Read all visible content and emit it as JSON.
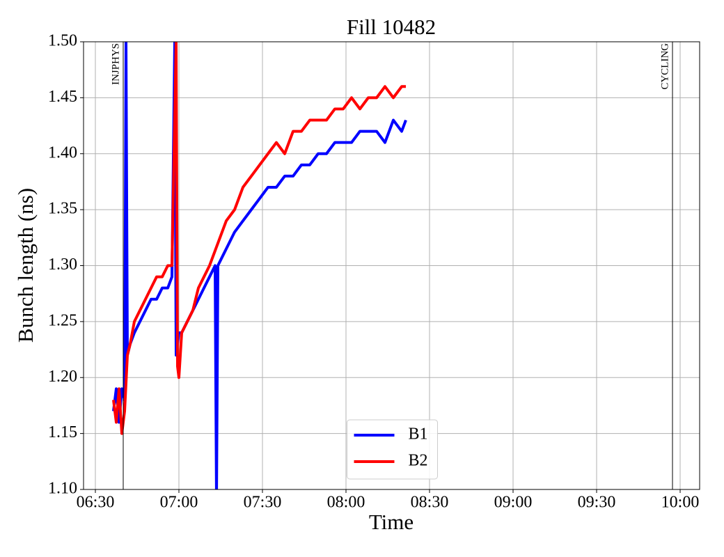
{
  "chart_data": {
    "type": "line",
    "title": "Fill 10482",
    "x_label": "Time",
    "y_label": "Bunch length (ns)",
    "xlim": [
      385.75,
      607
    ],
    "xticks": [
      {
        "value": 390,
        "label": "06:30"
      },
      {
        "value": 420,
        "label": "07:00"
      },
      {
        "value": 450,
        "label": "07:30"
      },
      {
        "value": 480,
        "label": "08:00"
      },
      {
        "value": 510,
        "label": "08:30"
      },
      {
        "value": 540,
        "label": "09:00"
      },
      {
        "value": 570,
        "label": "09:30"
      },
      {
        "value": 600,
        "label": "10:00"
      }
    ],
    "ylim": [
      1.1,
      1.5
    ],
    "yticks": [
      {
        "value": 1.1,
        "label": "1.10"
      },
      1.15,
      {
        "value": 1.2,
        "label": "1.20"
      },
      1.25,
      {
        "value": 1.3,
        "label": "1.30"
      },
      1.35,
      {
        "value": 1.4,
        "label": "1.40"
      },
      1.45,
      {
        "value": 1.5,
        "label": "1.50"
      }
    ],
    "grid": true,
    "legend": "lower center",
    "annotations": [
      {
        "text": "INJPHYS",
        "x": 400
      },
      {
        "text": "CYCLING",
        "x": 597.25
      }
    ],
    "series": [
      {
        "name": "B1",
        "color": "#0000ff",
        "x": [
          396.5,
          397.5,
          398.5,
          399.5,
          400.5,
          401,
          401.5,
          402.5,
          404,
          406,
          408,
          410,
          412,
          414,
          416,
          417.5,
          418.5,
          419,
          420,
          421,
          423,
          425,
          427,
          429,
          431,
          433,
          433.5,
          434,
          436,
          438,
          440,
          443,
          446,
          449,
          452,
          455,
          458,
          461,
          464,
          467,
          470,
          473,
          476,
          479,
          482,
          485,
          488,
          491,
          494,
          497,
          500,
          501.5
        ],
        "values": [
          1.17,
          1.19,
          1.16,
          1.19,
          1.18,
          1.5,
          1.22,
          1.23,
          1.24,
          1.25,
          1.26,
          1.27,
          1.27,
          1.28,
          1.28,
          1.29,
          1.5,
          1.22,
          1.24,
          1.24,
          1.25,
          1.26,
          1.27,
          1.28,
          1.29,
          1.3,
          1.09,
          1.3,
          1.31,
          1.32,
          1.33,
          1.34,
          1.35,
          1.36,
          1.37,
          1.37,
          1.38,
          1.38,
          1.39,
          1.39,
          1.4,
          1.4,
          1.41,
          1.41,
          1.41,
          1.42,
          1.42,
          1.42,
          1.41,
          1.43,
          1.42,
          1.43
        ]
      },
      {
        "name": "B2",
        "color": "#ff0000",
        "x": [
          396.5,
          397.5,
          398.5,
          399.5,
          400.5,
          401.5,
          402.5,
          404,
          406,
          408,
          410,
          412,
          414,
          416,
          417.5,
          419,
          419.5,
          420,
          421,
          423,
          425,
          427,
          429,
          431,
          434,
          437,
          440,
          443,
          446,
          449,
          452,
          455,
          458,
          461,
          464,
          467,
          470,
          473,
          476,
          479,
          482,
          485,
          488,
          491,
          494,
          497,
          500,
          501.5
        ],
        "values": [
          1.18,
          1.16,
          1.19,
          1.15,
          1.17,
          1.22,
          1.23,
          1.25,
          1.26,
          1.27,
          1.28,
          1.29,
          1.29,
          1.3,
          1.3,
          1.5,
          1.21,
          1.2,
          1.24,
          1.25,
          1.26,
          1.28,
          1.29,
          1.3,
          1.32,
          1.34,
          1.35,
          1.37,
          1.38,
          1.39,
          1.4,
          1.41,
          1.4,
          1.42,
          1.42,
          1.43,
          1.43,
          1.43,
          1.44,
          1.44,
          1.45,
          1.44,
          1.45,
          1.45,
          1.46,
          1.45,
          1.46,
          1.46
        ]
      }
    ]
  }
}
